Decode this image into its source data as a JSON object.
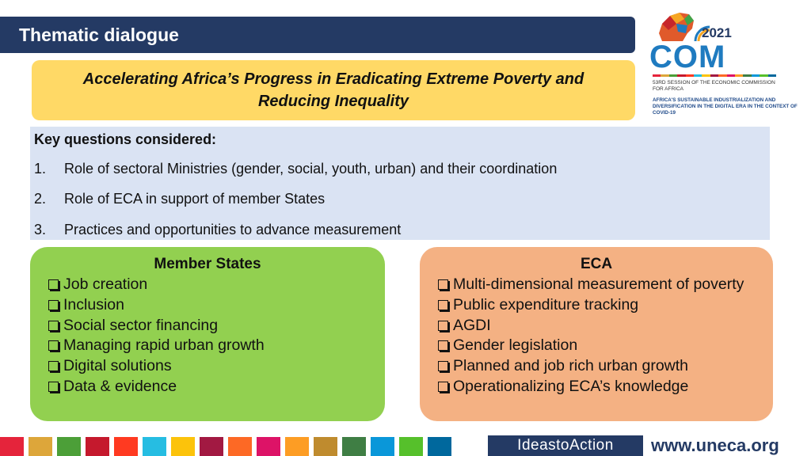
{
  "title": "Thematic dialogue",
  "subtitle": "Accelerating Africa’s Progress in Eradicating Extreme Poverty and Reducing Inequality",
  "questions": {
    "heading": "Key questions considered:",
    "items": [
      {
        "num": "1.",
        "text": "Role of sectoral Ministries (gender, social, youth, urban) and their coordination"
      },
      {
        "num": "2.",
        "text": "Role of ECA in support of member States"
      },
      {
        "num": "3.",
        "text": "Practices and opportunities to advance measurement"
      }
    ]
  },
  "member_states": {
    "heading": "Member States",
    "items": [
      "Job creation",
      "Inclusion",
      "Social sector financing",
      "Managing rapid urban growth",
      "Digital solutions",
      "Data & evidence"
    ]
  },
  "eca": {
    "heading": "ECA",
    "items": [
      "Multi-dimensional measurement of poverty",
      "Public expenditure tracking",
      "AGDI",
      "Gender legislation",
      "Planned and job rich urban growth",
      "Operationalizing ECA’s knowledge"
    ]
  },
  "logo": {
    "year": "2021",
    "name": "COM",
    "session": "53RD SESSION OF THE ECONOMIC COMMISSION FOR AFRICA",
    "theme": "AFRICA'S SUSTAINABLE INDUSTRIALIZATION AND DIVERSIFICATION IN THE DIGITAL ERA IN THE CONTEXT OF COVID-19"
  },
  "footer": {
    "ideas": "IdeastoAction",
    "url": "www.uneca.org",
    "sdg_colors": [
      "#e5243b",
      "#dda63a",
      "#4c9f38",
      "#c5192d",
      "#ff3a21",
      "#26bde2",
      "#fcc30b",
      "#a21942",
      "#fd6925",
      "#dd1367",
      "#fd9d24",
      "#bf8b2e",
      "#3f7e44",
      "#0a97d9",
      "#56c02b",
      "#00689d"
    ]
  }
}
